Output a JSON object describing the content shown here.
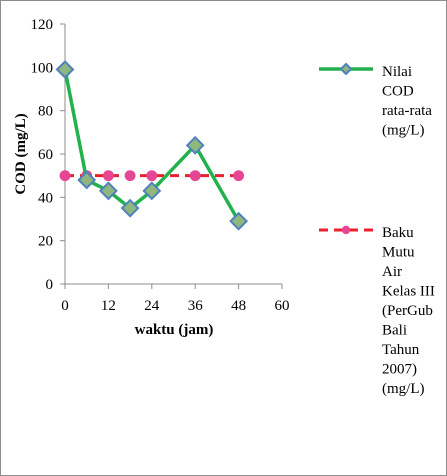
{
  "chart_data": {
    "type": "line",
    "xlabel": "waktu (jam)",
    "ylabel": "COD (mg/L)",
    "xlim": [
      0,
      60
    ],
    "ylim": [
      0,
      120
    ],
    "x_ticks": [
      "0",
      "12",
      "24",
      "36",
      "48",
      "60"
    ],
    "y_ticks": [
      "0",
      "20",
      "40",
      "60",
      "80",
      "100",
      "120"
    ],
    "grid": false,
    "legend_position": "right",
    "series": [
      {
        "name": "Nilai COD rata-rata (mg/L)",
        "legend_lines": [
          "Nilai",
          "COD",
          "rata-rata",
          "(mg/L)"
        ],
        "color": "#22b14c",
        "marker": "diamond",
        "marker_fill": "#8fb77d",
        "marker_stroke": "#4f81bd",
        "dash": "solid",
        "x": [
          0,
          6,
          12,
          18,
          24,
          36,
          48
        ],
        "y": [
          99,
          48,
          43,
          35,
          43,
          64,
          29
        ]
      },
      {
        "name": "Baku Mutu Air Kelas III (PerGub Bali Tahun 2007) (mg/L)",
        "legend_lines": [
          "Baku",
          "Mutu",
          "Air",
          "Kelas III",
          "(PerGub",
          "Bali",
          "Tahun",
          "2007)",
          "(mg/L)"
        ],
        "color": "#e8212e",
        "marker": "circle",
        "marker_fill": "#e64694",
        "marker_stroke": "#e64694",
        "dash": "dashed",
        "x": [
          0,
          6,
          12,
          18,
          24,
          36,
          48
        ],
        "y": [
          50,
          50,
          50,
          50,
          50,
          50,
          50
        ]
      }
    ]
  }
}
